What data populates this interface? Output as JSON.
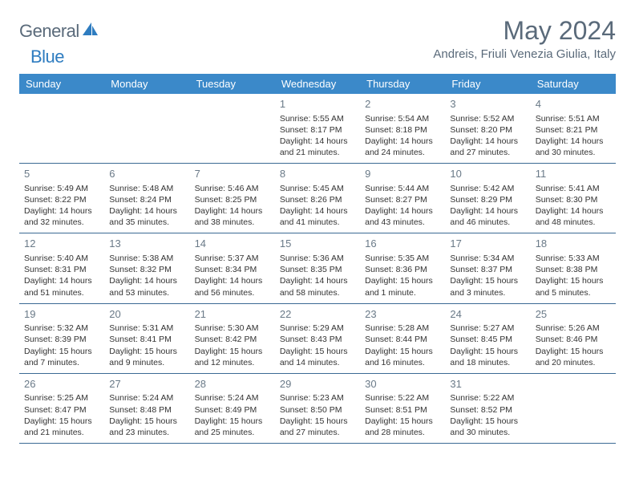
{
  "logo": {
    "text1": "General",
    "text2": "Blue"
  },
  "title": "May 2024",
  "location": "Andreis, Friuli Venezia Giulia, Italy",
  "colors": {
    "header_bg": "#3b89c9",
    "header_text": "#ffffff",
    "rule": "#3b6a94",
    "muted_text": "#5a6a7a",
    "daynum": "#6a7a88",
    "logo_blue": "#2e7cc0"
  },
  "weekdays": [
    "Sunday",
    "Monday",
    "Tuesday",
    "Wednesday",
    "Thursday",
    "Friday",
    "Saturday"
  ],
  "weeks": [
    [
      null,
      null,
      null,
      {
        "n": "1",
        "sr": "5:55 AM",
        "ss": "8:17 PM",
        "dl": "14 hours and 21 minutes."
      },
      {
        "n": "2",
        "sr": "5:54 AM",
        "ss": "8:18 PM",
        "dl": "14 hours and 24 minutes."
      },
      {
        "n": "3",
        "sr": "5:52 AM",
        "ss": "8:20 PM",
        "dl": "14 hours and 27 minutes."
      },
      {
        "n": "4",
        "sr": "5:51 AM",
        "ss": "8:21 PM",
        "dl": "14 hours and 30 minutes."
      }
    ],
    [
      {
        "n": "5",
        "sr": "5:49 AM",
        "ss": "8:22 PM",
        "dl": "14 hours and 32 minutes."
      },
      {
        "n": "6",
        "sr": "5:48 AM",
        "ss": "8:24 PM",
        "dl": "14 hours and 35 minutes."
      },
      {
        "n": "7",
        "sr": "5:46 AM",
        "ss": "8:25 PM",
        "dl": "14 hours and 38 minutes."
      },
      {
        "n": "8",
        "sr": "5:45 AM",
        "ss": "8:26 PM",
        "dl": "14 hours and 41 minutes."
      },
      {
        "n": "9",
        "sr": "5:44 AM",
        "ss": "8:27 PM",
        "dl": "14 hours and 43 minutes."
      },
      {
        "n": "10",
        "sr": "5:42 AM",
        "ss": "8:29 PM",
        "dl": "14 hours and 46 minutes."
      },
      {
        "n": "11",
        "sr": "5:41 AM",
        "ss": "8:30 PM",
        "dl": "14 hours and 48 minutes."
      }
    ],
    [
      {
        "n": "12",
        "sr": "5:40 AM",
        "ss": "8:31 PM",
        "dl": "14 hours and 51 minutes."
      },
      {
        "n": "13",
        "sr": "5:38 AM",
        "ss": "8:32 PM",
        "dl": "14 hours and 53 minutes."
      },
      {
        "n": "14",
        "sr": "5:37 AM",
        "ss": "8:34 PM",
        "dl": "14 hours and 56 minutes."
      },
      {
        "n": "15",
        "sr": "5:36 AM",
        "ss": "8:35 PM",
        "dl": "14 hours and 58 minutes."
      },
      {
        "n": "16",
        "sr": "5:35 AM",
        "ss": "8:36 PM",
        "dl": "15 hours and 1 minute."
      },
      {
        "n": "17",
        "sr": "5:34 AM",
        "ss": "8:37 PM",
        "dl": "15 hours and 3 minutes."
      },
      {
        "n": "18",
        "sr": "5:33 AM",
        "ss": "8:38 PM",
        "dl": "15 hours and 5 minutes."
      }
    ],
    [
      {
        "n": "19",
        "sr": "5:32 AM",
        "ss": "8:39 PM",
        "dl": "15 hours and 7 minutes."
      },
      {
        "n": "20",
        "sr": "5:31 AM",
        "ss": "8:41 PM",
        "dl": "15 hours and 9 minutes."
      },
      {
        "n": "21",
        "sr": "5:30 AM",
        "ss": "8:42 PM",
        "dl": "15 hours and 12 minutes."
      },
      {
        "n": "22",
        "sr": "5:29 AM",
        "ss": "8:43 PM",
        "dl": "15 hours and 14 minutes."
      },
      {
        "n": "23",
        "sr": "5:28 AM",
        "ss": "8:44 PM",
        "dl": "15 hours and 16 minutes."
      },
      {
        "n": "24",
        "sr": "5:27 AM",
        "ss": "8:45 PM",
        "dl": "15 hours and 18 minutes."
      },
      {
        "n": "25",
        "sr": "5:26 AM",
        "ss": "8:46 PM",
        "dl": "15 hours and 20 minutes."
      }
    ],
    [
      {
        "n": "26",
        "sr": "5:25 AM",
        "ss": "8:47 PM",
        "dl": "15 hours and 21 minutes."
      },
      {
        "n": "27",
        "sr": "5:24 AM",
        "ss": "8:48 PM",
        "dl": "15 hours and 23 minutes."
      },
      {
        "n": "28",
        "sr": "5:24 AM",
        "ss": "8:49 PM",
        "dl": "15 hours and 25 minutes."
      },
      {
        "n": "29",
        "sr": "5:23 AM",
        "ss": "8:50 PM",
        "dl": "15 hours and 27 minutes."
      },
      {
        "n": "30",
        "sr": "5:22 AM",
        "ss": "8:51 PM",
        "dl": "15 hours and 28 minutes."
      },
      {
        "n": "31",
        "sr": "5:22 AM",
        "ss": "8:52 PM",
        "dl": "15 hours and 30 minutes."
      },
      null
    ]
  ],
  "labels": {
    "sunrise": "Sunrise: ",
    "sunset": "Sunset: ",
    "daylight": "Daylight: "
  }
}
